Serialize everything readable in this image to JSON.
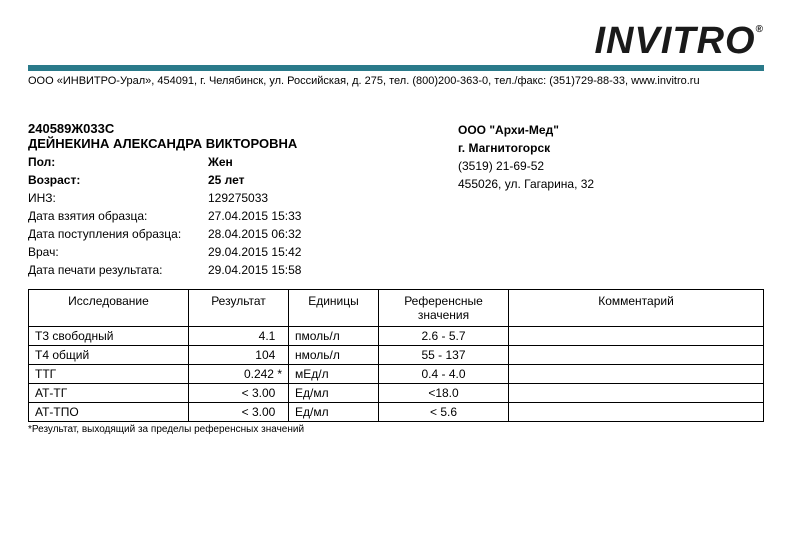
{
  "logo": {
    "text": "INVITRO",
    "reg": "®"
  },
  "company_line": "ООО «ИНВИТРО-Урал», 454091, г. Челябинск, ул. Российская, д. 275, тел. (800)200-363-0, тел./факс: (351)729-88-33, www.invitro.ru",
  "patient": {
    "code": "240589Ж033С",
    "name": "ДЕЙНЕКИНА АЛЕКСАНДРА ВИКТОРОВНА",
    "fields": [
      {
        "label": "Пол:",
        "value": "Жен",
        "bold": true
      },
      {
        "label": "Возраст:",
        "value": "25 лет",
        "bold": true
      },
      {
        "label": "ИНЗ:",
        "value": "129275033",
        "bold": false
      },
      {
        "label": "Дата взятия образца:",
        "value": "27.04.2015 15:33",
        "bold": false
      },
      {
        "label": "Дата поступления образца:",
        "value": "28.04.2015 06:32",
        "bold": false
      },
      {
        "label": "Врач:",
        "value": "29.04.2015 15:42",
        "bold": false
      },
      {
        "label": "Дата печати результата:",
        "value": "29.04.2015 15:58",
        "bold": false
      }
    ]
  },
  "clinic": {
    "name": "ООО \"Архи-Мед\"",
    "city": "г. Магнитогорск",
    "phone": "(3519) 21-69-52",
    "address": "455026,  ул. Гагарина, 32"
  },
  "table": {
    "headers": [
      "Исследование",
      "Результат",
      "Единицы",
      "Референсные значения",
      "Комментарий"
    ],
    "rows": [
      {
        "name": "Т3 свободный",
        "result": "4.1  ",
        "unit": "пмоль/л",
        "ref": "2.6 - 5.7",
        "comment": ""
      },
      {
        "name": "Т4 общий",
        "result": "104  ",
        "unit": "нмоль/л",
        "ref": "55 - 137",
        "comment": ""
      },
      {
        "name": "ТТГ",
        "result": "0.242 *",
        "unit": "мЕд/л",
        "ref": "0.4 - 4.0",
        "comment": ""
      },
      {
        "name": "АТ-ТГ",
        "result": "< 3.00  ",
        "unit": "Ед/мл",
        "ref": "<18.0",
        "comment": ""
      },
      {
        "name": "АТ-ТПО",
        "result": "< 3.00  ",
        "unit": "Ед/мл",
        "ref": "< 5.6",
        "comment": ""
      }
    ]
  },
  "footnote": "*Результат, выходящий за пределы референсных значений",
  "colors": {
    "teal": "#2a7a8a",
    "text": "#000000",
    "bg": "#ffffff"
  }
}
